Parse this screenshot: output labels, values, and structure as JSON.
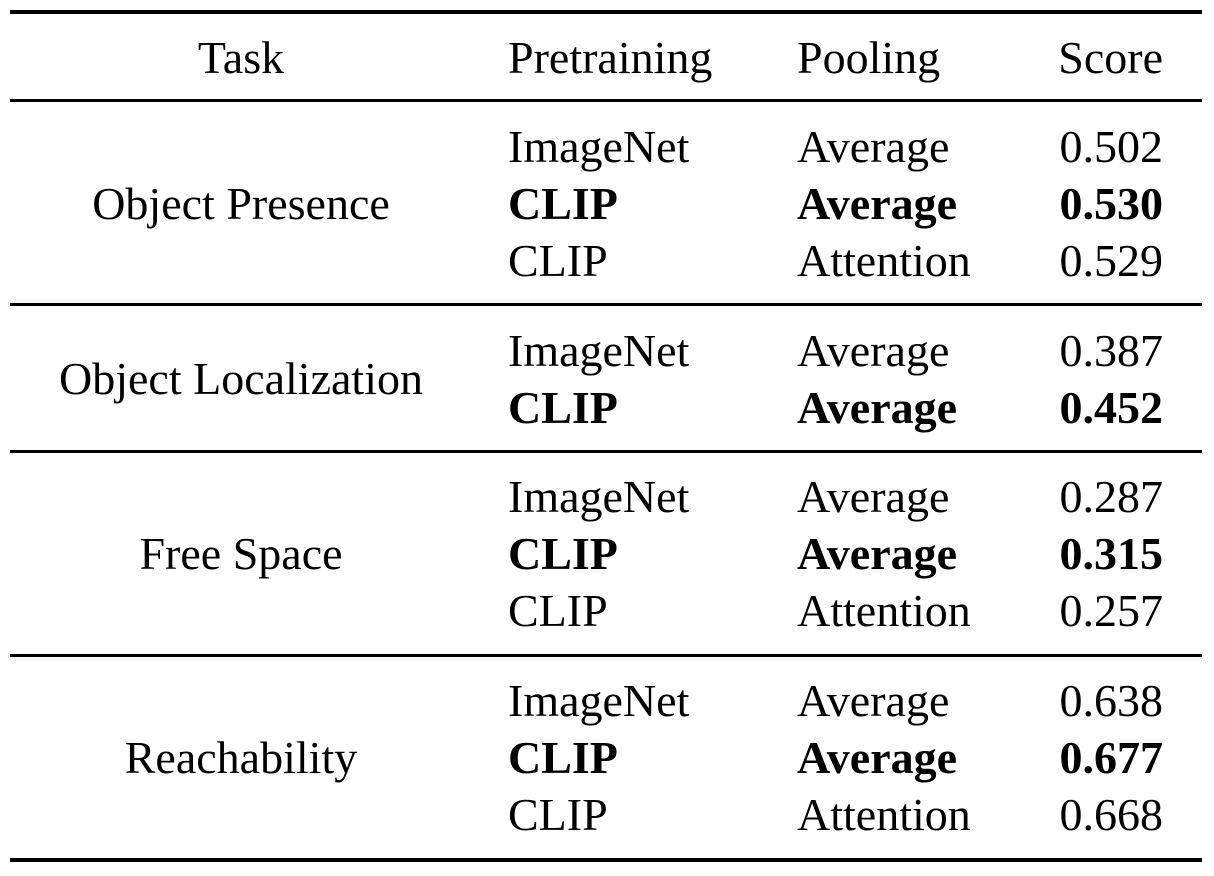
{
  "header": {
    "task": "Task",
    "pretraining": "Pretraining",
    "pooling": "Pooling",
    "score": "Score"
  },
  "groups": [
    {
      "task": "Object Presence",
      "rows": [
        {
          "pretraining": "ImageNet",
          "pooling": "Average",
          "score": "0.502",
          "bold": false
        },
        {
          "pretraining": "CLIP",
          "pooling": "Average",
          "score": "0.530",
          "bold": true
        },
        {
          "pretraining": "CLIP",
          "pooling": "Attention",
          "score": "0.529",
          "bold": false
        }
      ]
    },
    {
      "task": "Object Localization",
      "rows": [
        {
          "pretraining": "ImageNet",
          "pooling": "Average",
          "score": "0.387",
          "bold": false
        },
        {
          "pretraining": "CLIP",
          "pooling": "Average",
          "score": "0.452",
          "bold": true
        }
      ]
    },
    {
      "task": "Free Space",
      "rows": [
        {
          "pretraining": "ImageNet",
          "pooling": "Average",
          "score": "0.287",
          "bold": false
        },
        {
          "pretraining": "CLIP",
          "pooling": "Average",
          "score": "0.315",
          "bold": true
        },
        {
          "pretraining": "CLIP",
          "pooling": "Attention",
          "score": "0.257",
          "bold": false
        }
      ]
    },
    {
      "task": "Reachability",
      "rows": [
        {
          "pretraining": "ImageNet",
          "pooling": "Average",
          "score": "0.638",
          "bold": false
        },
        {
          "pretraining": "CLIP",
          "pooling": "Average",
          "score": "0.677",
          "bold": true
        },
        {
          "pretraining": "CLIP",
          "pooling": "Attention",
          "score": "0.668",
          "bold": false
        }
      ]
    }
  ]
}
